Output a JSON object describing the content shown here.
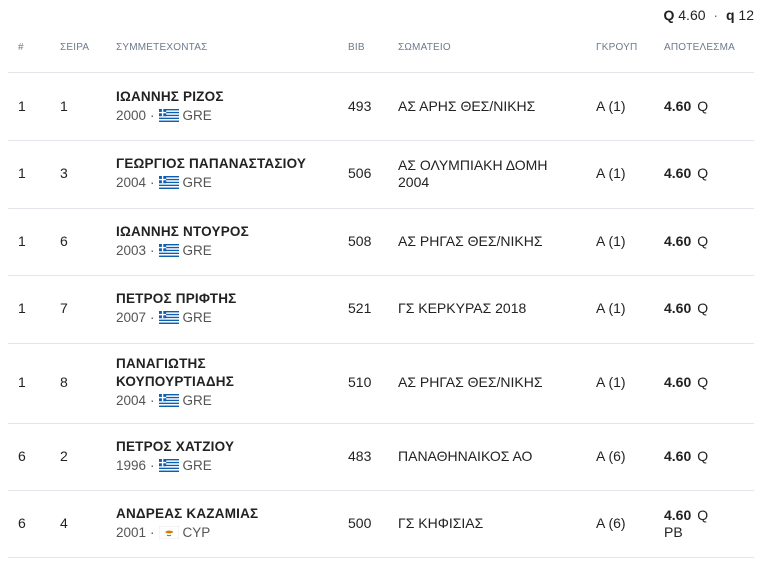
{
  "qualification": {
    "q_label": "Q",
    "q_value": "4.60",
    "sep": "·",
    "small_q_label": "q",
    "small_q_value": "12"
  },
  "columns": {
    "rank": "#",
    "lane": "ΣΕΙΡΑ",
    "athlete": "ΣΥΜΜΕΤΕΧΟΝΤΑΣ",
    "bib": "BIB",
    "club": "ΣΩΜΑΤΕΙΟ",
    "group": "ΓΚΡΟΥΠ",
    "result": "ΑΠΟΤΕΛΕΣΜΑ"
  },
  "rows": [
    {
      "rank": "1",
      "lane": "1",
      "name": [
        "ΙΩΑΝΝΗΣ ΡΙΖΟΣ"
      ],
      "year": "2000",
      "country": "GRE",
      "flag": "greece-flag-icon",
      "bib": "493",
      "club": [
        "ΑΣ ΑΡΗΣ ΘΕΣ/ΝΙΚΗΣ"
      ],
      "group": "Α  (1)",
      "result": "4.60",
      "mark": "Q",
      "extra": ""
    },
    {
      "rank": "1",
      "lane": "3",
      "name": [
        "ΓΕΩΡΓΙΟΣ ΠΑΠΑΝΑΣΤΑΣΙΟΥ"
      ],
      "year": "2004",
      "country": "GRE",
      "flag": "greece-flag-icon",
      "bib": "506",
      "club": [
        "ΑΣ ΟΛΥΜΠΙΑΚΗ ΔΟΜΗ",
        "2004"
      ],
      "group": "Α  (1)",
      "result": "4.60",
      "mark": "Q",
      "extra": ""
    },
    {
      "rank": "1",
      "lane": "6",
      "name": [
        "ΙΩΑΝΝΗΣ ΝΤΟΥΡΟΣ"
      ],
      "year": "2003",
      "country": "GRE",
      "flag": "greece-flag-icon",
      "bib": "508",
      "club": [
        "ΑΣ ΡΗΓΑΣ ΘΕΣ/ΝΙΚΗΣ"
      ],
      "group": "Α  (1)",
      "result": "4.60",
      "mark": "Q",
      "extra": ""
    },
    {
      "rank": "1",
      "lane": "7",
      "name": [
        "ΠΕΤΡΟΣ ΠΡΙΦΤΗΣ"
      ],
      "year": "2007",
      "country": "GRE",
      "flag": "greece-flag-icon",
      "bib": "521",
      "club": [
        "ΓΣ ΚΕΡΚΥΡΑΣ 2018"
      ],
      "group": "Α  (1)",
      "result": "4.60",
      "mark": "Q",
      "extra": ""
    },
    {
      "rank": "1",
      "lane": "8",
      "name": [
        "ΠΑΝΑΓΙΩΤΗΣ",
        "ΚΟΥΠΟΥΡΤΙΑΔΗΣ"
      ],
      "year": "2004",
      "country": "GRE",
      "flag": "greece-flag-icon",
      "bib": "510",
      "club": [
        "ΑΣ ΡΗΓΑΣ ΘΕΣ/ΝΙΚΗΣ"
      ],
      "group": "Α  (1)",
      "result": "4.60",
      "mark": "Q",
      "extra": ""
    },
    {
      "rank": "6",
      "lane": "2",
      "name": [
        "ΠΕΤΡΟΣ ΧΑΤΖΙΟΥ"
      ],
      "year": "1996",
      "country": "GRE",
      "flag": "greece-flag-icon",
      "bib": "483",
      "club": [
        "ΠΑΝΑΘΗΝΑΙΚΟΣ ΑΟ"
      ],
      "group": "Α  (6)",
      "result": "4.60",
      "mark": "Q",
      "extra": ""
    },
    {
      "rank": "6",
      "lane": "4",
      "name": [
        "ΑΝΔΡΕΑΣ ΚΑΖΑΜΙΑΣ"
      ],
      "year": "2001",
      "country": "CYP",
      "flag": "cyprus-flag-icon",
      "bib": "500",
      "club": [
        "ΓΣ ΚΗΦΙΣΙΑΣ"
      ],
      "group": "Α  (6)",
      "result": "4.60",
      "mark": "Q",
      "extra": "PB"
    }
  ]
}
